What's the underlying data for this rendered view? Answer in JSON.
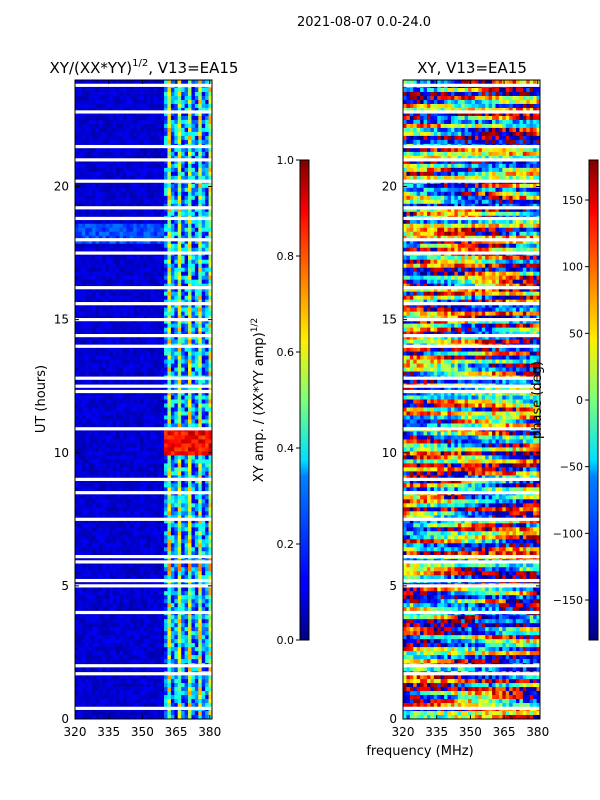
{
  "suptitle": "2021-08-07 0.0-24.0",
  "colors": {
    "background": "#ffffff",
    "flag_gap": "#ffffff",
    "axis": "#000000"
  },
  "chart_data": [
    {
      "type": "heatmap",
      "title_main": "XY/(XX*YY)",
      "title_exp": "1/2",
      "title_suffix": ", V13=EA15",
      "xlabel": "",
      "ylabel": "UT (hours)",
      "xlim": [
        320,
        381
      ],
      "ylim": [
        0,
        24
      ],
      "xticks": [
        "320",
        "335",
        "350",
        "365",
        "380"
      ],
      "xtick_values": [
        320,
        335,
        350,
        365,
        380
      ],
      "yticks": [
        "0",
        "5",
        "10",
        "15",
        "20"
      ],
      "ytick_values": [
        0,
        5,
        10,
        15,
        20
      ],
      "colormap": "jet",
      "colorbar": {
        "label_main": "XY amp. / (XX*YY amp)",
        "label_exp": "1/2",
        "range": [
          0.0,
          1.0
        ],
        "ticks": [
          "0.0",
          "0.2",
          "0.4",
          "0.6",
          "0.8",
          "1.0"
        ],
        "tick_values": [
          0.0,
          0.2,
          0.4,
          0.6,
          0.8,
          1.0
        ]
      },
      "description_bands": [
        {
          "freq_range": [
            320,
            359
          ],
          "level": 0.05,
          "note": "mostly low amplitude"
        },
        {
          "freq_range": [
            359,
            381
          ],
          "level": 0.35,
          "note": "striped channels with higher amplitude"
        },
        {
          "ut_range": [
            9.9,
            10.9
          ],
          "freq_range": [
            359,
            381
          ],
          "level": 0.85,
          "note": "bright band"
        }
      ],
      "flagged_ut_hours": [
        0.4,
        1.7,
        2.0,
        4.0,
        5.0,
        5.2,
        5.9,
        6.1,
        7.5,
        8.5,
        9.0,
        10.9,
        12.3,
        12.5,
        12.8,
        14.0,
        14.4,
        15.0,
        15.6,
        16.2,
        17.5,
        18.0,
        18.8,
        19.2,
        20.2,
        21.0,
        21.5,
        22.8,
        23.8
      ]
    },
    {
      "type": "heatmap",
      "title_main": "XY, V13=EA15",
      "xlabel": "frequency (MHz)",
      "ylabel": "",
      "xlim": [
        320,
        381
      ],
      "ylim": [
        0,
        24
      ],
      "xticks": [
        "320",
        "335",
        "350",
        "365",
        "380"
      ],
      "xtick_values": [
        320,
        335,
        350,
        365,
        380
      ],
      "yticks": [
        "0",
        "5",
        "10",
        "15",
        "20"
      ],
      "ytick_values": [
        0,
        5,
        10,
        15,
        20
      ],
      "colormap": "jet",
      "colorbar": {
        "label_main": "phase (deg)",
        "range": [
          -180,
          180
        ],
        "ticks": [
          "−150",
          "−100",
          "−50",
          "0",
          "50",
          "100",
          "150"
        ],
        "tick_values": [
          -150,
          -100,
          -50,
          0,
          50,
          100,
          150
        ]
      },
      "flagged_ut_hours": [
        0.4,
        1.7,
        2.0,
        4.0,
        5.0,
        5.2,
        5.9,
        6.1,
        7.5,
        8.5,
        9.0,
        10.9,
        12.3,
        12.5,
        12.8,
        14.0,
        14.4,
        15.0,
        15.6,
        16.2,
        17.5,
        18.0,
        18.8,
        19.2,
        20.2,
        21.0,
        21.5,
        22.8,
        23.8
      ]
    }
  ]
}
